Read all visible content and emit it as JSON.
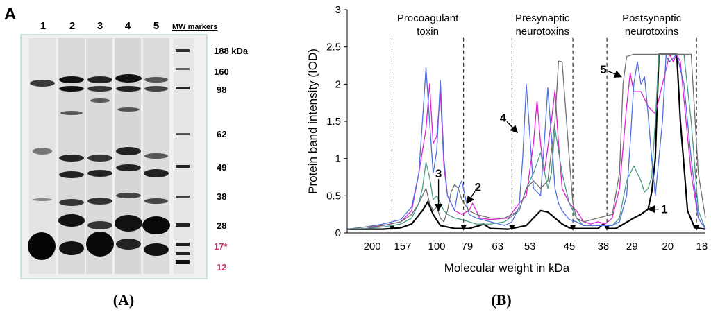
{
  "figure": {
    "panel_a_letter": "A",
    "caption_a": "(A)",
    "caption_b": "(B)"
  },
  "gel": {
    "lane_labels": [
      "1",
      "2",
      "3",
      "4",
      "5"
    ],
    "marker_header": "MW markers",
    "marker_labels": [
      {
        "text": "188 kDa",
        "color": "#000000"
      },
      {
        "text": "160",
        "color": "#000000"
      },
      {
        "text": "98",
        "color": "#000000"
      },
      {
        "text": "62",
        "color": "#000000"
      },
      {
        "text": "49",
        "color": "#000000"
      },
      {
        "text": "38",
        "color": "#000000"
      },
      {
        "text": "28",
        "color": "#000000"
      },
      {
        "text": "17*",
        "color": "#c0306a"
      },
      {
        "text": "12",
        "color": "#c0306a"
      }
    ]
  },
  "chart_data": {
    "type": "line",
    "title": "",
    "xlabel": "Molecular weight in kDa",
    "ylabel": "Protein band intensity (IOD)",
    "ylim": [
      0,
      3
    ],
    "yticks": [
      0,
      0.5,
      1,
      1.5,
      2,
      2.5,
      3
    ],
    "ytick_labels": [
      "0",
      "0.5",
      "1",
      "1.5",
      "2",
      "2.5",
      "3"
    ],
    "xlim": [
      0,
      100
    ],
    "xticks": [
      {
        "pos": 7,
        "label": "200"
      },
      {
        "pos": 15.5,
        "label": "157"
      },
      {
        "pos": 25,
        "label": "100"
      },
      {
        "pos": 33.5,
        "label": "79"
      },
      {
        "pos": 42,
        "label": "63"
      },
      {
        "pos": 51,
        "label": "53"
      },
      {
        "pos": 62,
        "label": "45"
      },
      {
        "pos": 71.5,
        "label": "38"
      },
      {
        "pos": 79.5,
        "label": "29"
      },
      {
        "pos": 89.5,
        "label": "20"
      },
      {
        "pos": 99,
        "label": "18"
      }
    ],
    "regions": [
      {
        "label": "Procoagulant toxin",
        "line1": "Procoagulant",
        "line2": "toxin",
        "x0": 12.5,
        "x1": 32.5
      },
      {
        "label": "Presynaptic neurotoxins",
        "line1": "Presynaptic",
        "line2": "neurotoxins",
        "x0": 46,
        "x1": 63
      },
      {
        "label": "Postsynaptic neurotoxins",
        "line1": "Postsynaptic",
        "line2": "neurotoxins",
        "x0": 72.5,
        "x1": 97.5
      }
    ],
    "annotations": [
      {
        "text": "1",
        "x": 84,
        "y": 0.32,
        "tx": 88.5,
        "ty": 0.32
      },
      {
        "text": "2",
        "x": 33.5,
        "y": 0.4,
        "tx": 36.5,
        "ty": 0.62
      },
      {
        "text": "3",
        "x": 25.5,
        "y": 0.3,
        "tx": 25.5,
        "ty": 0.8
      },
      {
        "text": "4",
        "x": 47.5,
        "y": 1.35,
        "tx": 43.5,
        "ty": 1.55
      },
      {
        "text": "5",
        "x": 76.5,
        "y": 2.1,
        "tx": 71.5,
        "ty": 2.2
      }
    ],
    "series": [
      {
        "name": "1",
        "color": "#000000",
        "x": [
          0,
          5,
          10,
          15,
          18,
          21,
          22.5,
          24,
          26,
          30,
          34,
          37,
          38,
          40,
          45,
          50,
          52,
          54,
          56,
          58,
          60,
          62,
          64,
          66,
          68,
          70,
          71.5,
          73,
          75,
          80,
          82,
          84,
          85,
          86,
          87,
          88,
          89,
          90,
          92,
          93,
          95,
          97,
          100
        ],
        "y": [
          0.05,
          0.05,
          0.05,
          0.07,
          0.12,
          0.3,
          0.42,
          0.25,
          0.1,
          0.06,
          0.06,
          0.1,
          0.12,
          0.06,
          0.05,
          0.1,
          0.2,
          0.3,
          0.28,
          0.2,
          0.12,
          0.07,
          0.06,
          0.06,
          0.06,
          0.06,
          0.12,
          0.06,
          0.06,
          0.2,
          0.25,
          0.32,
          0.55,
          1.0,
          2.4,
          2.4,
          2.4,
          2.4,
          2.4,
          1.5,
          0.3,
          0.07,
          0.05
        ]
      },
      {
        "name": "2",
        "color": "#e020d0",
        "x": [
          0,
          5,
          10,
          15,
          18,
          20,
          22,
          23,
          24,
          25,
          26,
          27,
          28,
          30,
          32,
          34,
          35,
          36,
          37,
          40,
          45,
          48,
          50,
          52,
          53,
          54,
          55,
          57,
          58,
          59,
          60,
          62,
          64,
          66,
          68,
          70,
          72,
          74,
          76,
          78,
          79,
          80,
          82,
          84,
          86,
          88,
          90,
          91,
          92,
          93,
          94,
          96,
          98,
          100
        ],
        "y": [
          0.05,
          0.06,
          0.1,
          0.15,
          0.3,
          0.8,
          1.4,
          2.0,
          1.2,
          1.3,
          1.9,
          0.9,
          0.5,
          0.3,
          0.25,
          0.3,
          0.4,
          0.3,
          0.2,
          0.18,
          0.2,
          0.4,
          0.5,
          1.2,
          1.78,
          1.2,
          0.8,
          1.5,
          1.92,
          1.2,
          0.6,
          0.4,
          0.3,
          0.15,
          0.12,
          0.15,
          0.12,
          0.2,
          0.6,
          1.7,
          2.15,
          1.9,
          1.9,
          1.7,
          1.6,
          2.0,
          2.4,
          2.3,
          2.4,
          2.3,
          1.8,
          0.8,
          0.2,
          0.05
        ]
      },
      {
        "name": "3",
        "color": "#4a9a8a",
        "x": [
          0,
          5,
          10,
          15,
          18,
          20,
          21,
          22,
          23,
          24,
          25,
          26,
          27,
          28,
          30,
          32,
          34,
          36,
          40,
          44,
          48,
          50,
          52,
          54,
          56,
          57,
          58,
          60,
          62,
          64,
          66,
          70,
          74,
          76,
          78,
          80,
          82,
          83,
          84,
          85,
          86,
          87,
          88,
          90,
          92,
          94,
          96,
          98,
          100
        ],
        "y": [
          0.05,
          0.06,
          0.08,
          0.12,
          0.2,
          0.4,
          0.6,
          0.95,
          0.75,
          0.45,
          0.5,
          0.4,
          0.3,
          0.25,
          0.2,
          0.18,
          0.15,
          0.12,
          0.12,
          0.15,
          0.3,
          0.6,
          0.8,
          1.08,
          0.6,
          0.8,
          1.4,
          0.8,
          0.4,
          0.2,
          0.1,
          0.1,
          0.1,
          0.2,
          0.7,
          0.9,
          0.7,
          0.55,
          0.6,
          0.75,
          1.5,
          2.4,
          2.4,
          2.4,
          2.4,
          2.4,
          1.5,
          0.3,
          0.05
        ]
      },
      {
        "name": "4",
        "color": "#5070e0",
        "x": [
          0,
          5,
          10,
          15,
          18,
          20,
          21,
          22,
          23,
          24,
          25,
          26,
          27,
          28,
          30,
          31,
          32,
          34,
          36,
          40,
          44,
          46,
          48,
          49,
          50,
          51,
          52,
          54,
          55,
          56,
          57,
          58,
          59,
          60,
          62,
          64,
          66,
          70,
          74,
          76,
          78,
          79,
          80,
          81,
          82,
          83,
          84,
          85,
          86,
          88,
          89,
          90,
          92,
          94,
          96,
          98,
          100
        ],
        "y": [
          0.05,
          0.08,
          0.12,
          0.18,
          0.35,
          0.8,
          1.5,
          2.22,
          1.5,
          0.8,
          1.1,
          2.05,
          1.0,
          0.5,
          0.3,
          0.6,
          0.7,
          0.25,
          0.2,
          0.15,
          0.1,
          0.15,
          0.35,
          1.0,
          2.0,
          1.3,
          0.6,
          0.5,
          1.2,
          1.95,
          1.3,
          0.6,
          0.4,
          0.3,
          0.18,
          0.15,
          0.1,
          0.1,
          0.1,
          0.15,
          0.5,
          1.2,
          2.0,
          2.3,
          2.0,
          2.1,
          1.6,
          1.0,
          0.5,
          1.5,
          2.38,
          2.3,
          2.4,
          2.0,
          1.0,
          0.2,
          0.05
        ]
      },
      {
        "name": "5",
        "color": "#707070",
        "x": [
          0,
          5,
          10,
          15,
          18,
          20,
          21,
          22,
          23,
          24,
          25,
          26,
          27,
          28,
          29,
          30,
          31,
          32,
          34,
          36,
          40,
          44,
          48,
          50,
          52,
          54,
          56,
          58,
          59,
          60,
          62,
          63,
          64,
          66,
          70,
          74,
          76,
          77,
          78,
          80,
          82,
          84,
          86,
          88,
          90,
          92,
          94,
          96,
          98,
          100
        ],
        "y": [
          0.05,
          0.08,
          0.1,
          0.15,
          0.25,
          0.4,
          0.5,
          0.6,
          0.4,
          0.3,
          0.35,
          0.2,
          0.15,
          0.3,
          0.55,
          0.65,
          0.6,
          0.45,
          0.3,
          0.25,
          0.2,
          0.2,
          0.3,
          0.6,
          0.7,
          0.6,
          0.7,
          1.5,
          2.31,
          2.3,
          1.0,
          0.4,
          0.2,
          0.15,
          0.2,
          0.25,
          0.8,
          2.0,
          2.37,
          2.4,
          2.4,
          2.4,
          2.4,
          2.4,
          2.4,
          2.4,
          2.4,
          2.4,
          0.8,
          0.2
        ]
      }
    ]
  }
}
